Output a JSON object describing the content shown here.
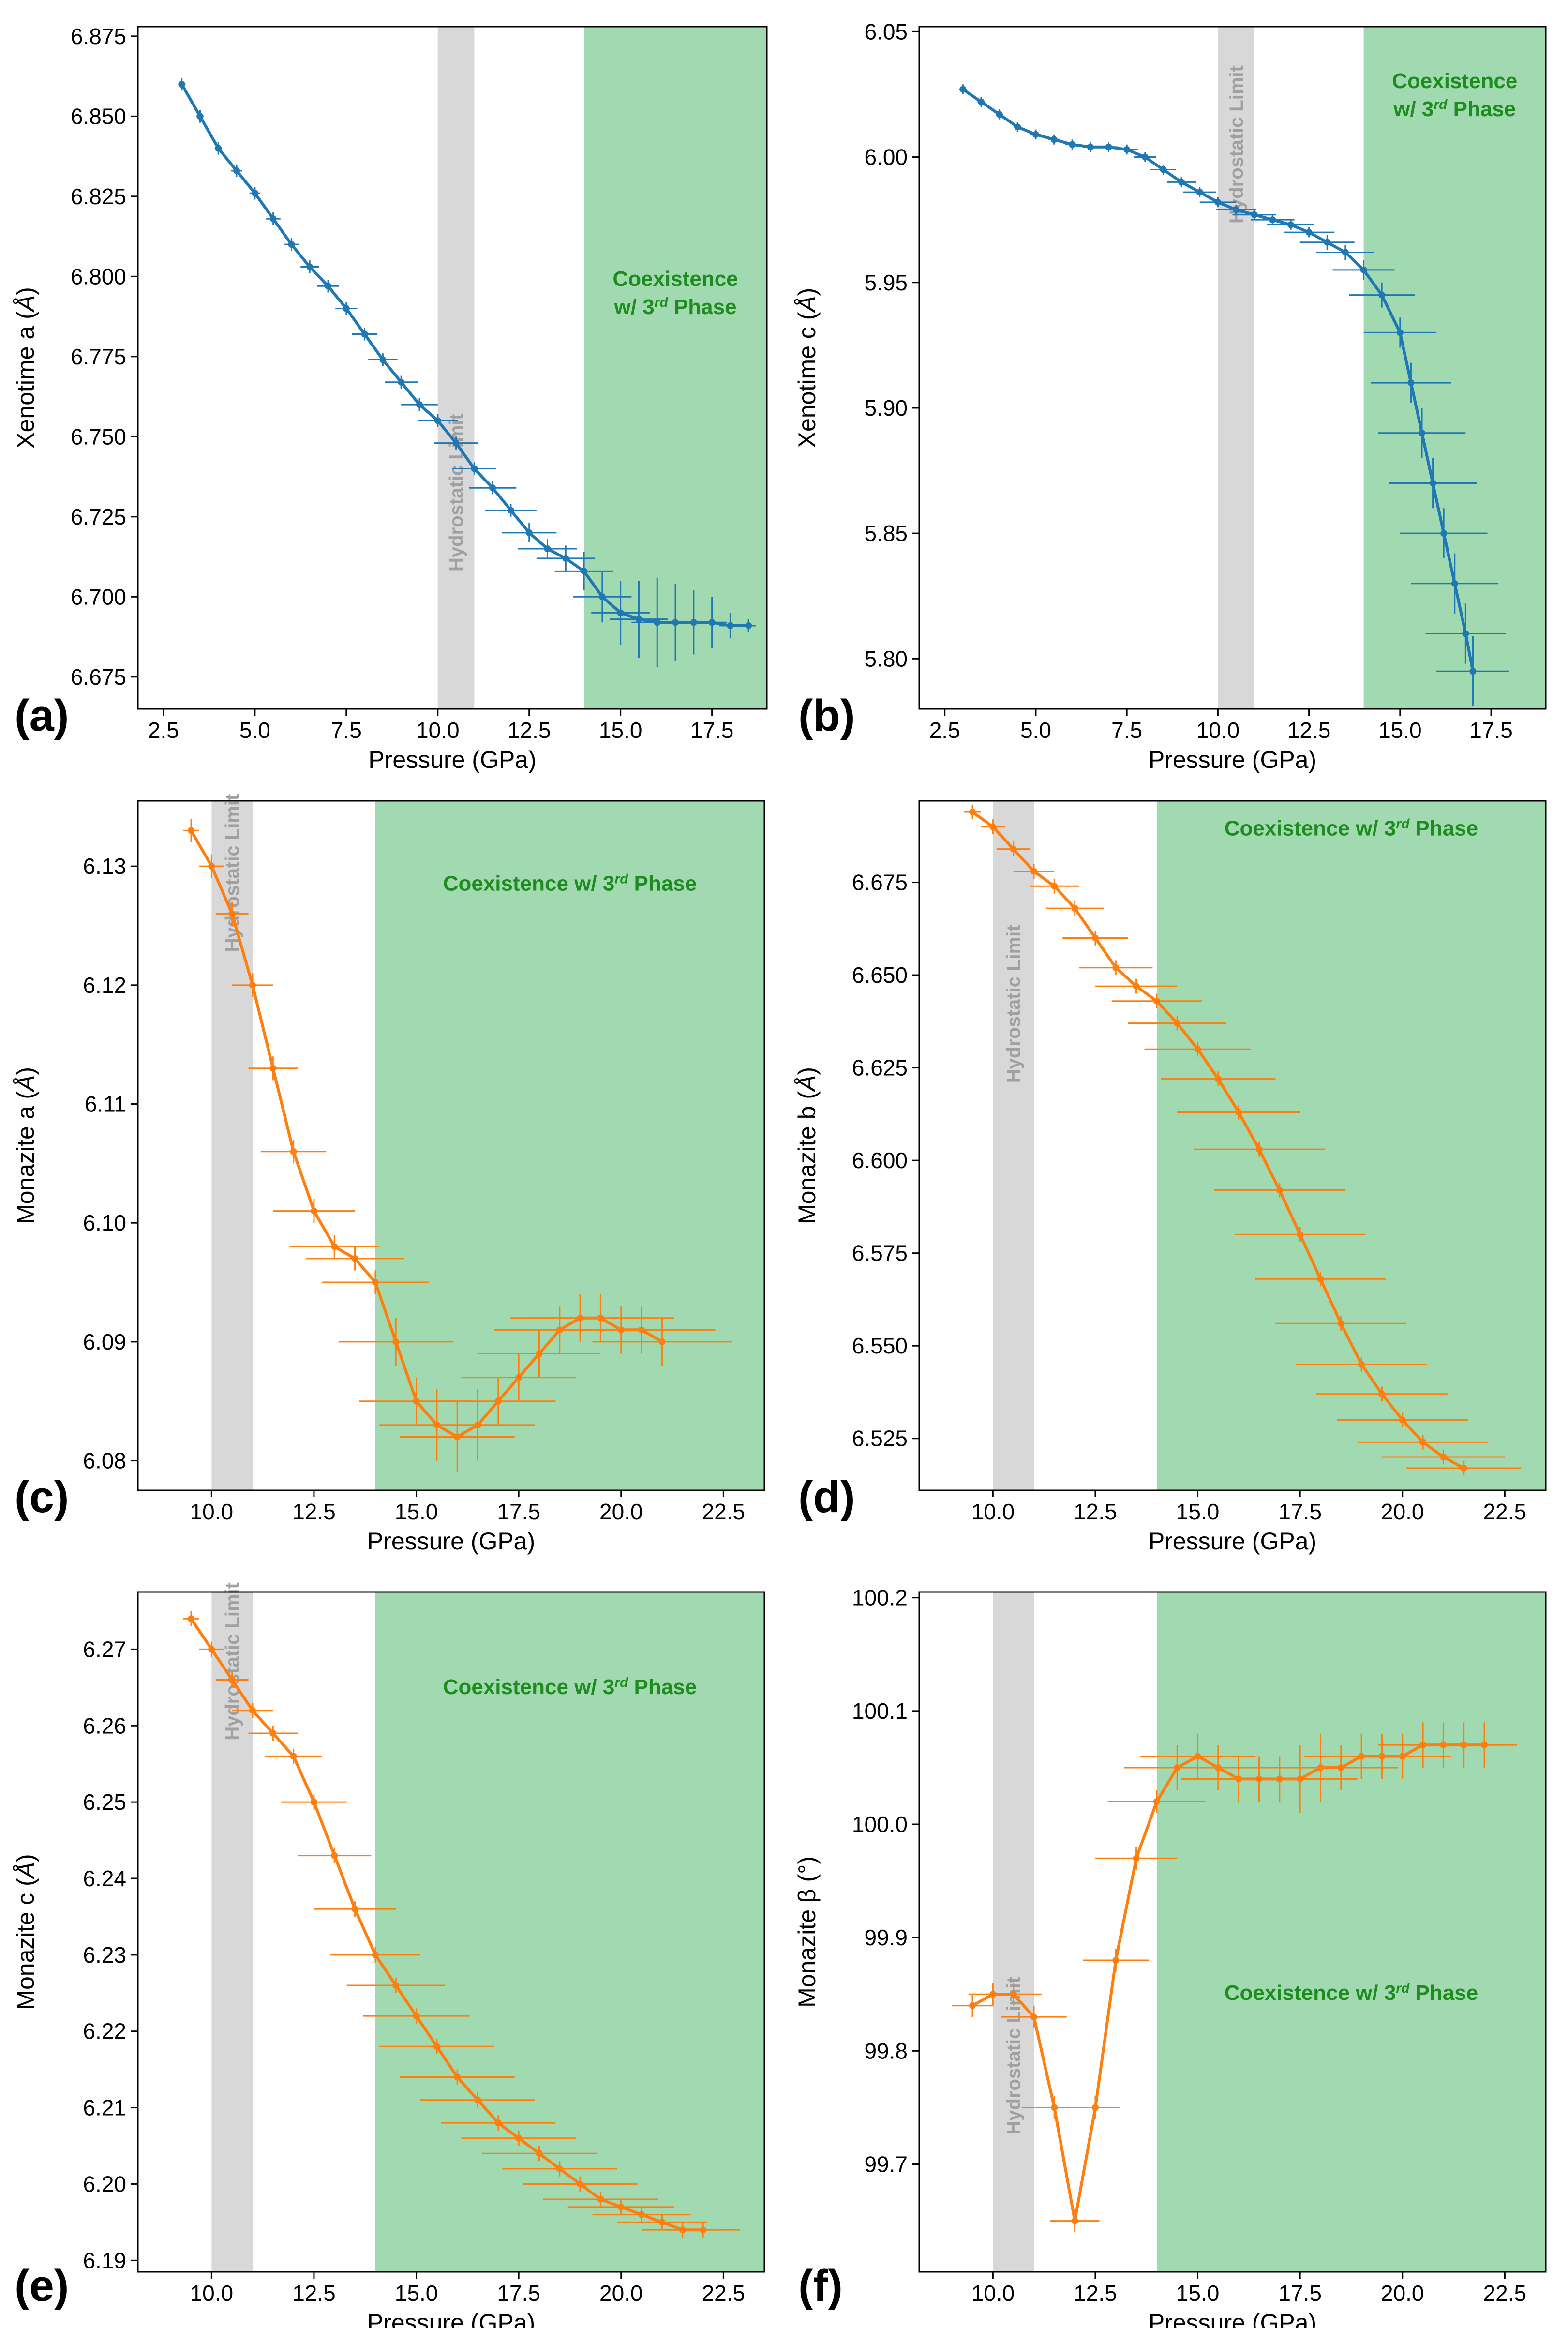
{
  "figure": {
    "note_colors": {
      "xenotime": "#1f77b4",
      "monazite": "#ff7f0e",
      "coexistence_fill": "#a1d9b1",
      "hydrostatic_fill": "#d8d8d8",
      "coexistence_text": "#1e8c1e",
      "hydrostatic_text": "#a0a0a0"
    }
  },
  "chart_data": [
    {
      "id": "a",
      "panel_label": "(a)",
      "type": "line",
      "xlabel": "Pressure (GPa)",
      "ylabel_main": "Xenotime a (",
      "ylabel_unit": "Å",
      "ylabel_close": ")",
      "xlim": [
        1.8,
        19.0
      ],
      "ylim": [
        6.665,
        6.878
      ],
      "xticks": [
        2.5,
        5.0,
        7.5,
        10.0,
        12.5,
        15.0,
        17.5
      ],
      "xtick_labels": [
        "2.5",
        "5.0",
        "7.5",
        "10.0",
        "12.5",
        "15.0",
        "17.5"
      ],
      "yticks": [
        6.675,
        6.7,
        6.725,
        6.75,
        6.775,
        6.8,
        6.825,
        6.85,
        6.875
      ],
      "ytick_labels": [
        "6.675",
        "6.700",
        "6.725",
        "6.750",
        "6.775",
        "6.800",
        "6.825",
        "6.850",
        "6.875"
      ],
      "series_color": "#1f77b4",
      "hydrostatic_band": [
        10.0,
        11.0
      ],
      "hydrostatic_label": "Hydrostatic Limit",
      "coexistence_band": [
        14.0,
        19.0
      ],
      "coexistence_lines": [
        "Coexistence",
        "w/ 3",
        "rd",
        " Phase"
      ],
      "x": [
        3.0,
        3.5,
        4.0,
        4.5,
        5.0,
        5.5,
        6.0,
        6.5,
        7.0,
        7.5,
        8.0,
        8.5,
        9.0,
        9.5,
        10.0,
        10.5,
        11.0,
        11.5,
        12.0,
        12.5,
        13.0,
        13.5,
        14.0,
        14.5,
        15.0,
        15.5,
        16.0,
        16.5,
        17.0,
        17.5,
        18.0,
        18.5
      ],
      "y": [
        6.86,
        6.85,
        6.84,
        6.833,
        6.826,
        6.818,
        6.81,
        6.803,
        6.797,
        6.79,
        6.782,
        6.774,
        6.767,
        6.76,
        6.755,
        6.748,
        6.74,
        6.734,
        6.727,
        6.72,
        6.715,
        6.712,
        6.708,
        6.7,
        6.695,
        6.693,
        6.692,
        6.692,
        6.692,
        6.692,
        6.691,
        6.691
      ],
      "xerr": [
        0.1,
        0.1,
        0.1,
        0.15,
        0.15,
        0.2,
        0.2,
        0.25,
        0.3,
        0.3,
        0.35,
        0.4,
        0.45,
        0.5,
        0.55,
        0.6,
        0.6,
        0.65,
        0.7,
        0.75,
        0.8,
        0.8,
        0.8,
        0.8,
        0.8,
        0.8,
        0.7,
        0.6,
        0.5,
        0.4,
        0.3,
        0.2
      ],
      "yerr": [
        0.002,
        0.002,
        0.002,
        0.002,
        0.002,
        0.002,
        0.002,
        0.002,
        0.002,
        0.002,
        0.002,
        0.002,
        0.002,
        0.002,
        0.002,
        0.002,
        0.002,
        0.002,
        0.002,
        0.003,
        0.003,
        0.004,
        0.006,
        0.008,
        0.01,
        0.012,
        0.014,
        0.012,
        0.01,
        0.008,
        0.004,
        0.002
      ]
    },
    {
      "id": "b",
      "panel_label": "(b)",
      "type": "line",
      "xlabel": "Pressure (GPa)",
      "ylabel_main": "Xenotime c (",
      "ylabel_unit": "Å",
      "ylabel_close": ")",
      "xlim": [
        1.8,
        19.0
      ],
      "ylim": [
        5.78,
        6.052
      ],
      "xticks": [
        2.5,
        5.0,
        7.5,
        10.0,
        12.5,
        15.0,
        17.5
      ],
      "xtick_labels": [
        "2.5",
        "5.0",
        "7.5",
        "10.0",
        "12.5",
        "15.0",
        "17.5"
      ],
      "yticks": [
        5.8,
        5.85,
        5.9,
        5.95,
        6.0,
        6.05
      ],
      "ytick_labels": [
        "5.80",
        "5.85",
        "5.90",
        "5.95",
        "6.00",
        "6.05"
      ],
      "series_color": "#1f77b4",
      "hydrostatic_band": [
        10.0,
        11.0
      ],
      "hydrostatic_label": "Hydrostatic Limit",
      "coexistence_band": [
        14.0,
        19.0
      ],
      "coexistence_lines": [
        "Coexistence",
        "w/ 3",
        "rd",
        " Phase"
      ],
      "x": [
        3.0,
        3.5,
        4.0,
        4.5,
        5.0,
        5.5,
        6.0,
        6.5,
        7.0,
        7.5,
        8.0,
        8.5,
        9.0,
        9.5,
        10.0,
        10.5,
        11.0,
        11.5,
        12.0,
        12.5,
        13.0,
        13.5,
        14.0,
        14.5,
        15.0,
        15.3,
        15.6,
        15.9,
        16.2,
        16.5,
        16.8,
        17.0
      ],
      "y": [
        6.027,
        6.022,
        6.017,
        6.012,
        6.009,
        6.007,
        6.005,
        6.004,
        6.004,
        6.003,
        6.0,
        5.995,
        5.99,
        5.986,
        5.982,
        5.979,
        5.977,
        5.975,
        5.973,
        5.97,
        5.966,
        5.962,
        5.955,
        5.945,
        5.93,
        5.91,
        5.89,
        5.87,
        5.85,
        5.83,
        5.81,
        5.795
      ],
      "xerr": [
        0.1,
        0.1,
        0.1,
        0.1,
        0.15,
        0.15,
        0.2,
        0.2,
        0.25,
        0.3,
        0.3,
        0.35,
        0.4,
        0.45,
        0.5,
        0.55,
        0.6,
        0.6,
        0.65,
        0.7,
        0.75,
        0.8,
        0.85,
        0.9,
        1.0,
        1.1,
        1.2,
        1.2,
        1.2,
        1.2,
        1.1,
        1.0
      ],
      "yerr": [
        0.002,
        0.002,
        0.002,
        0.002,
        0.002,
        0.002,
        0.002,
        0.002,
        0.002,
        0.002,
        0.002,
        0.002,
        0.002,
        0.002,
        0.002,
        0.002,
        0.002,
        0.002,
        0.002,
        0.002,
        0.003,
        0.003,
        0.004,
        0.005,
        0.006,
        0.008,
        0.01,
        0.01,
        0.01,
        0.012,
        0.012,
        0.014
      ]
    },
    {
      "id": "c",
      "panel_label": "(c)",
      "type": "line",
      "xlabel": "Pressure (GPa)",
      "ylabel_main": "Monazite a (",
      "ylabel_unit": "Å",
      "ylabel_close": ")",
      "xlim": [
        8.2,
        23.5
      ],
      "ylim": [
        6.0775,
        6.1355
      ],
      "xticks": [
        10.0,
        12.5,
        15.0,
        17.5,
        20.0,
        22.5
      ],
      "xtick_labels": [
        "10.0",
        "12.5",
        "15.0",
        "17.5",
        "20.0",
        "22.5"
      ],
      "yticks": [
        6.08,
        6.09,
        6.1,
        6.11,
        6.12,
        6.13
      ],
      "ytick_labels": [
        "6.08",
        "6.09",
        "6.10",
        "6.11",
        "6.12",
        "6.13"
      ],
      "series_color": "#ff7f0e",
      "hydrostatic_band": [
        10.0,
        11.0
      ],
      "hydrostatic_label": "Hydrostatic Limit",
      "coexistence_band": [
        14.0,
        23.5
      ],
      "coexistence_lines": [
        "Coexistence w/ 3",
        "rd",
        " Phase"
      ],
      "x": [
        9.5,
        10.0,
        10.5,
        11.0,
        11.5,
        12.0,
        12.5,
        13.0,
        13.5,
        14.0,
        14.5,
        15.0,
        15.5,
        16.0,
        16.5,
        17.0,
        17.5,
        18.0,
        18.5,
        19.0,
        19.5,
        20.0,
        20.5,
        21.0
      ],
      "y": [
        6.133,
        6.13,
        6.126,
        6.12,
        6.113,
        6.106,
        6.101,
        6.098,
        6.097,
        6.095,
        6.09,
        6.085,
        6.083,
        6.082,
        6.083,
        6.085,
        6.087,
        6.089,
        6.091,
        6.092,
        6.092,
        6.091,
        6.091,
        6.09
      ],
      "xerr": [
        0.2,
        0.3,
        0.4,
        0.5,
        0.6,
        0.8,
        1.0,
        1.1,
        1.2,
        1.3,
        1.4,
        1.4,
        1.4,
        1.4,
        1.4,
        1.4,
        1.4,
        1.5,
        1.6,
        1.7,
        1.8,
        1.8,
        1.8,
        1.7
      ],
      "yerr": [
        0.001,
        0.001,
        0.001,
        0.001,
        0.001,
        0.001,
        0.001,
        0.001,
        0.001,
        0.001,
        0.002,
        0.002,
        0.003,
        0.003,
        0.003,
        0.002,
        0.002,
        0.002,
        0.002,
        0.002,
        0.002,
        0.002,
        0.002,
        0.002
      ]
    },
    {
      "id": "d",
      "panel_label": "(d)",
      "type": "line",
      "xlabel": "Pressure (GPa)",
      "ylabel_main": "Monazite b (",
      "ylabel_unit": "Å",
      "ylabel_close": ")",
      "xlim": [
        8.2,
        23.5
      ],
      "ylim": [
        6.511,
        6.697
      ],
      "xticks": [
        10.0,
        12.5,
        15.0,
        17.5,
        20.0,
        22.5
      ],
      "xtick_labels": [
        "10.0",
        "12.5",
        "15.0",
        "17.5",
        "20.0",
        "22.5"
      ],
      "yticks": [
        6.525,
        6.55,
        6.575,
        6.6,
        6.625,
        6.65,
        6.675
      ],
      "ytick_labels": [
        "6.525",
        "6.550",
        "6.575",
        "6.600",
        "6.625",
        "6.650",
        "6.675"
      ],
      "series_color": "#ff7f0e",
      "hydrostatic_band": [
        10.0,
        11.0
      ],
      "hydrostatic_label": "Hydrostatic Limit",
      "coexistence_band": [
        14.0,
        23.5
      ],
      "coexistence_lines": [
        "Coexistence w/ 3",
        "rd",
        " Phase"
      ],
      "x": [
        9.5,
        10.0,
        10.5,
        11.0,
        11.5,
        12.0,
        12.5,
        13.0,
        13.5,
        14.0,
        14.5,
        15.0,
        15.5,
        16.0,
        16.5,
        17.0,
        17.5,
        18.0,
        18.5,
        19.0,
        19.5,
        20.0,
        20.5,
        21.0,
        21.5
      ],
      "y": [
        6.694,
        6.69,
        6.684,
        6.678,
        6.674,
        6.668,
        6.66,
        6.652,
        6.647,
        6.643,
        6.637,
        6.63,
        6.622,
        6.613,
        6.603,
        6.592,
        6.58,
        6.568,
        6.556,
        6.545,
        6.537,
        6.53,
        6.524,
        6.52,
        6.517
      ],
      "xerr": [
        0.2,
        0.3,
        0.4,
        0.5,
        0.6,
        0.7,
        0.8,
        0.9,
        1.0,
        1.1,
        1.2,
        1.3,
        1.4,
        1.5,
        1.6,
        1.6,
        1.6,
        1.6,
        1.6,
        1.6,
        1.6,
        1.6,
        1.6,
        1.5,
        1.4
      ],
      "yerr": [
        0.002,
        0.002,
        0.002,
        0.002,
        0.002,
        0.002,
        0.002,
        0.002,
        0.002,
        0.002,
        0.002,
        0.002,
        0.002,
        0.002,
        0.002,
        0.002,
        0.002,
        0.002,
        0.002,
        0.002,
        0.002,
        0.002,
        0.002,
        0.002,
        0.002
      ]
    },
    {
      "id": "e",
      "panel_label": "(e)",
      "type": "line",
      "xlabel": "Pressure (GPa)",
      "ylabel_main": "Monazite c (",
      "ylabel_unit": "Å",
      "ylabel_close": ")",
      "xlim": [
        8.2,
        23.5
      ],
      "ylim": [
        6.1885,
        6.2775
      ],
      "xticks": [
        10.0,
        12.5,
        15.0,
        17.5,
        20.0,
        22.5
      ],
      "xtick_labels": [
        "10.0",
        "12.5",
        "15.0",
        "17.5",
        "20.0",
        "22.5"
      ],
      "yticks": [
        6.19,
        6.2,
        6.21,
        6.22,
        6.23,
        6.24,
        6.25,
        6.26,
        6.27
      ],
      "ytick_labels": [
        "6.19",
        "6.20",
        "6.21",
        "6.22",
        "6.23",
        "6.24",
        "6.25",
        "6.26",
        "6.27"
      ],
      "series_color": "#ff7f0e",
      "hydrostatic_band": [
        10.0,
        11.0
      ],
      "hydrostatic_label": "Hydrostatic Limit",
      "coexistence_band": [
        14.0,
        23.5
      ],
      "coexistence_lines": [
        "Coexistence w/ 3",
        "rd",
        " Phase"
      ],
      "x": [
        9.5,
        10.0,
        10.5,
        11.0,
        11.5,
        12.0,
        12.5,
        13.0,
        13.5,
        14.0,
        14.5,
        15.0,
        15.5,
        16.0,
        16.5,
        17.0,
        17.5,
        18.0,
        18.5,
        19.0,
        19.5,
        20.0,
        20.5,
        21.0,
        21.5,
        22.0
      ],
      "y": [
        6.274,
        6.27,
        6.266,
        6.262,
        6.259,
        6.256,
        6.25,
        6.243,
        6.236,
        6.23,
        6.226,
        6.222,
        6.218,
        6.214,
        6.211,
        6.208,
        6.206,
        6.204,
        6.202,
        6.2,
        6.198,
        6.197,
        6.196,
        6.195,
        6.194,
        6.194
      ],
      "xerr": [
        0.2,
        0.3,
        0.4,
        0.5,
        0.6,
        0.7,
        0.8,
        0.9,
        1.0,
        1.1,
        1.2,
        1.3,
        1.4,
        1.4,
        1.4,
        1.4,
        1.4,
        1.4,
        1.4,
        1.4,
        1.4,
        1.3,
        1.2,
        1.1,
        1.0,
        0.9
      ],
      "yerr": [
        0.001,
        0.001,
        0.001,
        0.001,
        0.001,
        0.001,
        0.001,
        0.001,
        0.001,
        0.001,
        0.001,
        0.001,
        0.001,
        0.001,
        0.001,
        0.001,
        0.001,
        0.001,
        0.001,
        0.001,
        0.001,
        0.001,
        0.001,
        0.001,
        0.001,
        0.001
      ]
    },
    {
      "id": "f",
      "panel_label": "(f)",
      "type": "line",
      "xlabel": "Pressure (GPa)",
      "ylabel_main": "Monazite β (°)",
      "ylabel_unit": "",
      "ylabel_close": "",
      "xlim": [
        8.2,
        23.5
      ],
      "ylim": [
        99.605,
        100.205
      ],
      "xticks": [
        10.0,
        12.5,
        15.0,
        17.5,
        20.0,
        22.5
      ],
      "xtick_labels": [
        "10.0",
        "12.5",
        "15.0",
        "17.5",
        "20.0",
        "22.5"
      ],
      "yticks": [
        99.7,
        99.8,
        99.9,
        100.0,
        100.1,
        100.2
      ],
      "ytick_labels": [
        "99.7",
        "99.8",
        "99.9",
        "100.0",
        "100.1",
        "100.2"
      ],
      "series_color": "#ff7f0e",
      "hydrostatic_band": [
        10.0,
        11.0
      ],
      "hydrostatic_label": "Hydrostatic Limit",
      "coexistence_band": [
        14.0,
        23.5
      ],
      "coexistence_lines": [
        "Coexistence w/ 3",
        "rd",
        " Phase"
      ],
      "x": [
        9.5,
        10.0,
        10.5,
        11.0,
        11.5,
        12.0,
        12.5,
        13.0,
        13.5,
        14.0,
        14.5,
        15.0,
        15.5,
        16.0,
        16.5,
        17.0,
        17.5,
        18.0,
        18.5,
        19.0,
        19.5,
        20.0,
        20.5,
        21.0,
        21.5,
        22.0
      ],
      "y": [
        99.84,
        99.85,
        99.85,
        99.83,
        99.75,
        99.65,
        99.75,
        99.88,
        99.97,
        100.02,
        100.05,
        100.06,
        100.05,
        100.04,
        100.04,
        100.04,
        100.04,
        100.05,
        100.05,
        100.06,
        100.06,
        100.06,
        100.07,
        100.07,
        100.07,
        100.07
      ],
      "xerr": [
        0.5,
        0.6,
        0.7,
        0.8,
        0.8,
        0.6,
        0.6,
        0.8,
        1.0,
        1.2,
        1.3,
        1.4,
        1.4,
        1.4,
        1.4,
        1.4,
        1.4,
        1.4,
        1.4,
        1.4,
        1.3,
        1.2,
        1.1,
        1.0,
        0.9,
        0.8
      ],
      "yerr": [
        0.01,
        0.01,
        0.01,
        0.01,
        0.01,
        0.01,
        0.01,
        0.01,
        0.01,
        0.01,
        0.02,
        0.02,
        0.02,
        0.02,
        0.02,
        0.02,
        0.03,
        0.03,
        0.02,
        0.02,
        0.02,
        0.02,
        0.02,
        0.02,
        0.02,
        0.02
      ]
    }
  ]
}
